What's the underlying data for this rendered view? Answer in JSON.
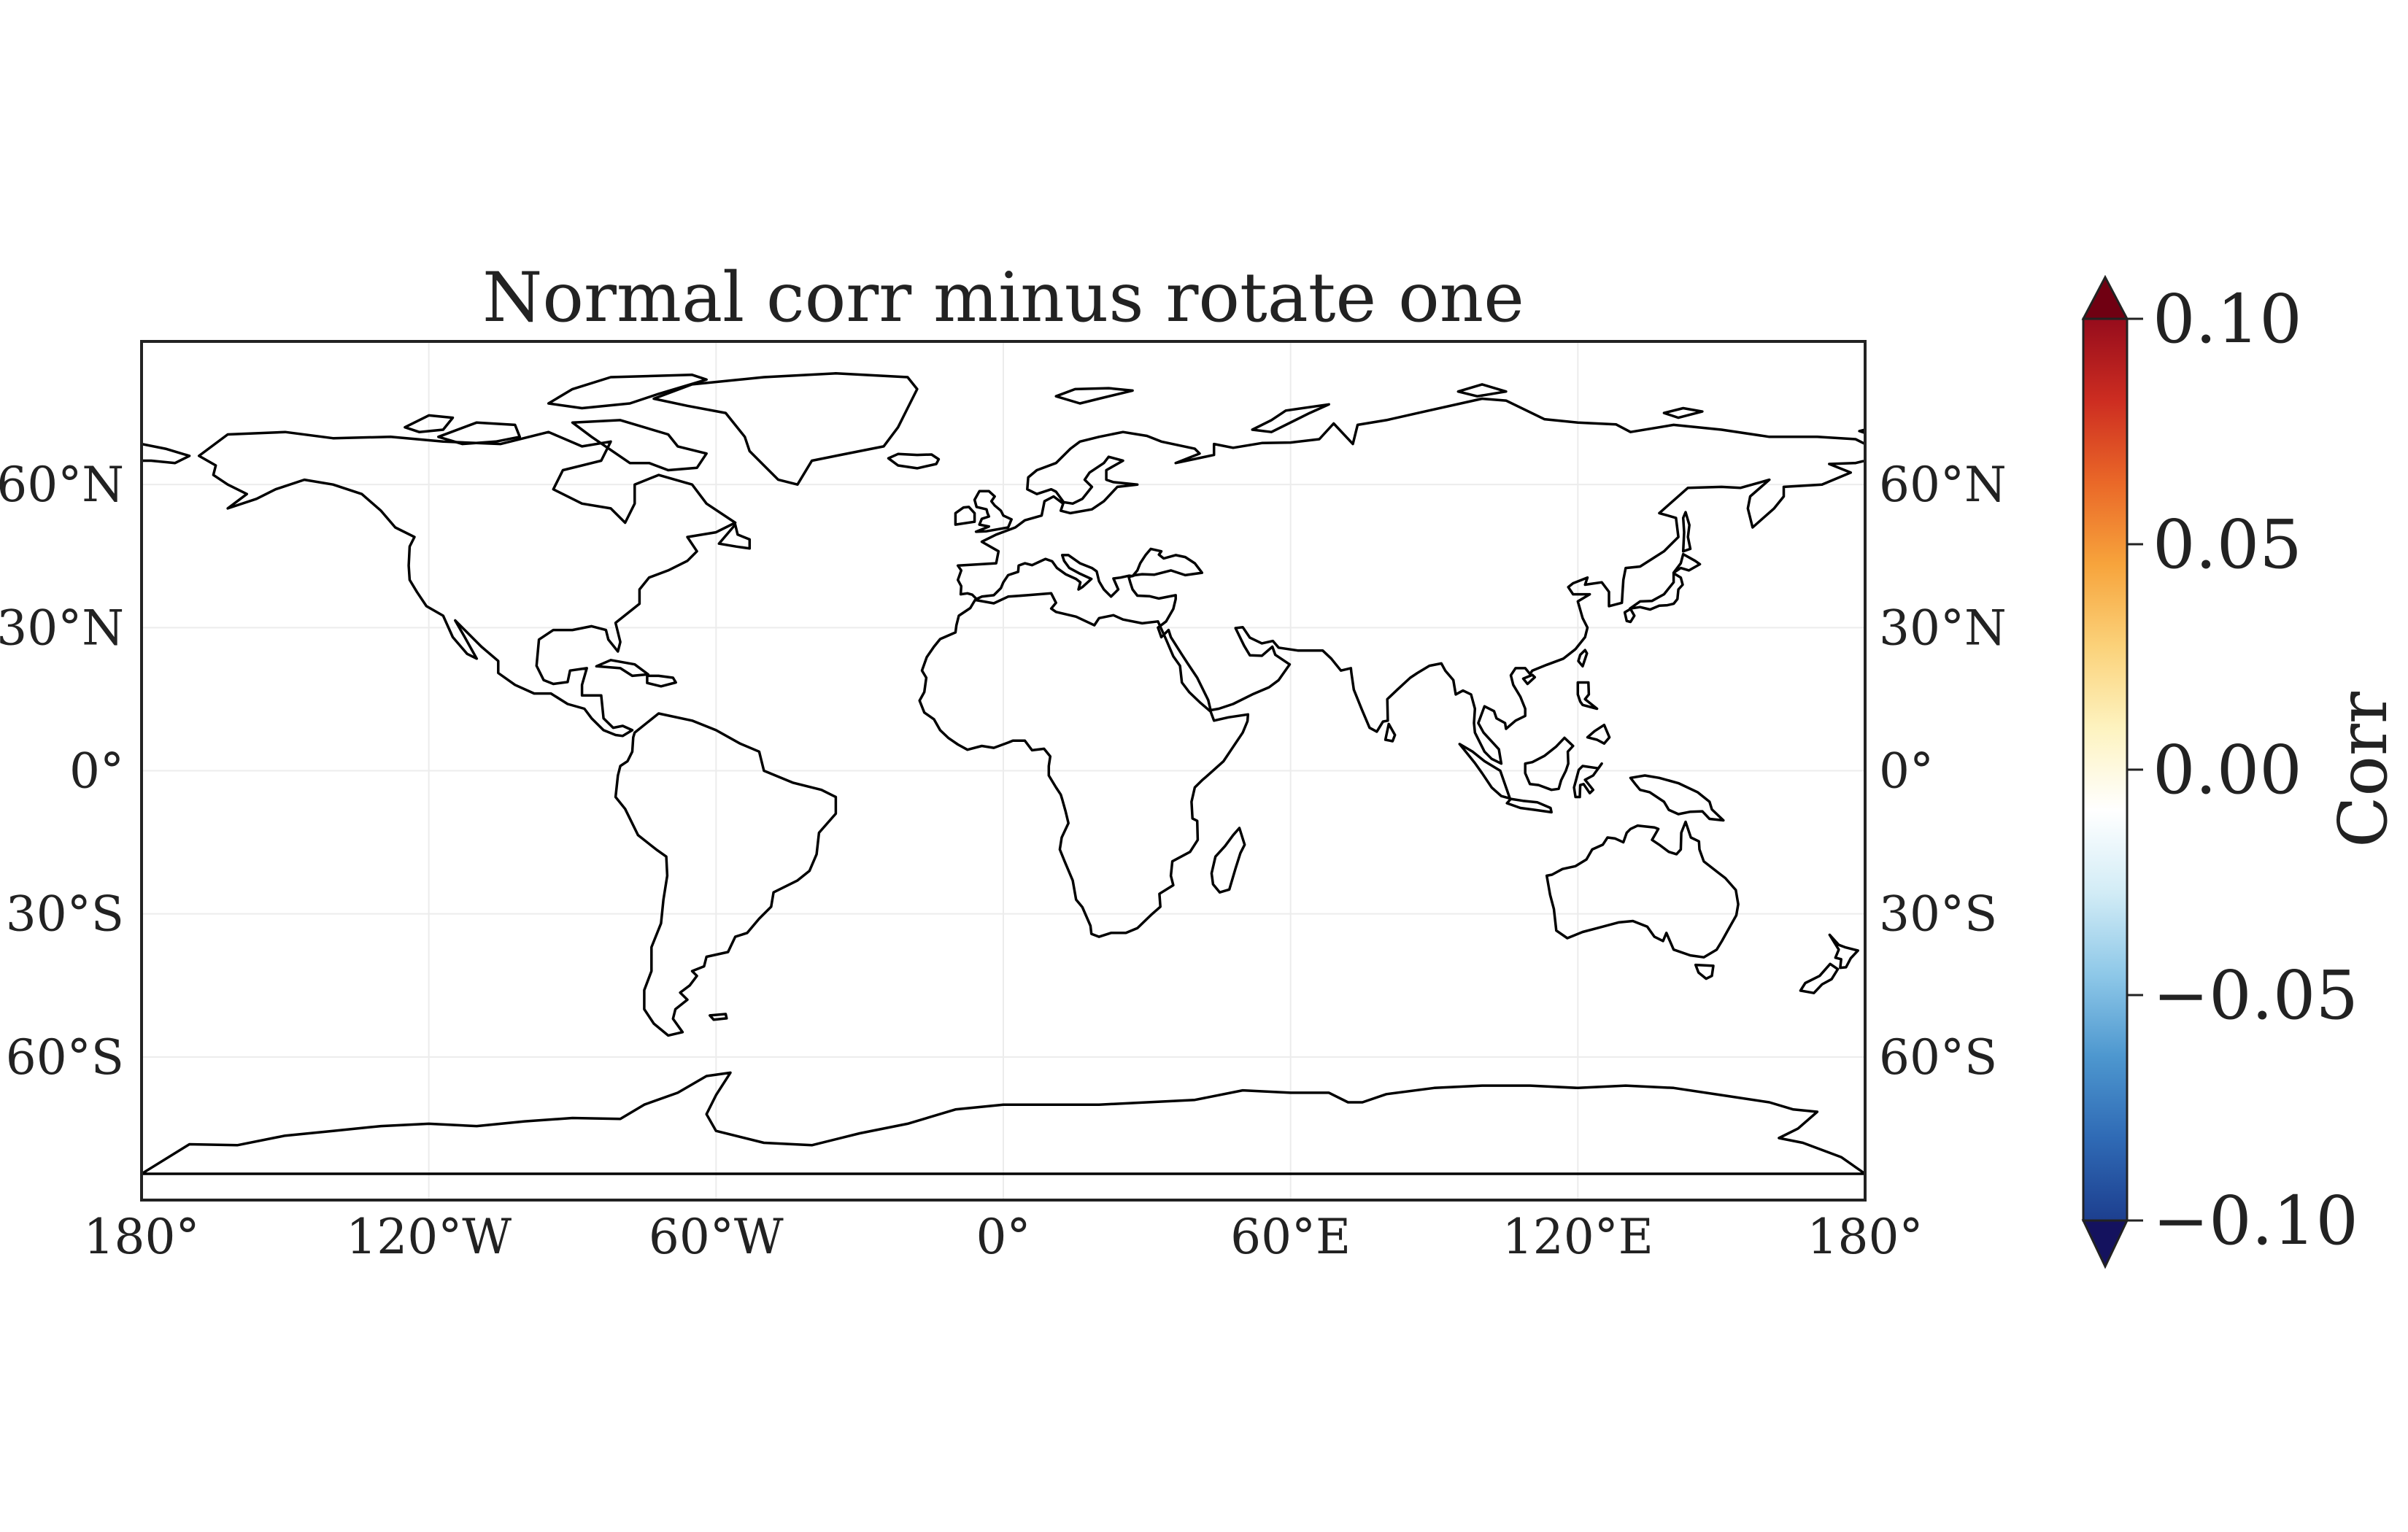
{
  "title": "Normal corr minus rotate one",
  "map": {
    "projection": "PlateCarree",
    "extent": {
      "lon": [
        -180,
        180
      ],
      "lat": [
        -90,
        90
      ]
    },
    "gridlines": true,
    "coastline_color": "#000000",
    "x_ticks": [
      {
        "lon": -180,
        "label": "180°"
      },
      {
        "lon": -120,
        "label": "120°W"
      },
      {
        "lon": -60,
        "label": "60°W"
      },
      {
        "lon": 0,
        "label": "0°"
      },
      {
        "lon": 60,
        "label": "60°E"
      },
      {
        "lon": 120,
        "label": "120°E"
      },
      {
        "lon": 180,
        "label": "180°"
      }
    ],
    "y_ticks": [
      {
        "lat": 60,
        "label": "60°N"
      },
      {
        "lat": 30,
        "label": "30°N"
      },
      {
        "lat": 0,
        "label": "0°"
      },
      {
        "lat": -30,
        "label": "30°S"
      },
      {
        "lat": -60,
        "label": "60°S"
      }
    ],
    "field_value": 0.0
  },
  "colorbar": {
    "label": "Corr",
    "range": [
      -0.1,
      0.1
    ],
    "extend": "both",
    "colormap": "RdYlBu_r",
    "colors": [
      "#14125e",
      "#1d3f8f",
      "#2f6ab5",
      "#4d97cf",
      "#8ec8e8",
      "#d2ecf6",
      "#ffffff",
      "#fdf3c0",
      "#fbd27a",
      "#f7a43c",
      "#ea6828",
      "#cd2d21",
      "#960c1c",
      "#700012"
    ],
    "ticks": [
      {
        "value": 0.1,
        "label": "0.10"
      },
      {
        "value": 0.05,
        "label": "0.05"
      },
      {
        "value": 0.0,
        "label": "0.00"
      },
      {
        "value": -0.05,
        "label": "−0.05"
      },
      {
        "value": -0.1,
        "label": "−0.10"
      }
    ]
  }
}
